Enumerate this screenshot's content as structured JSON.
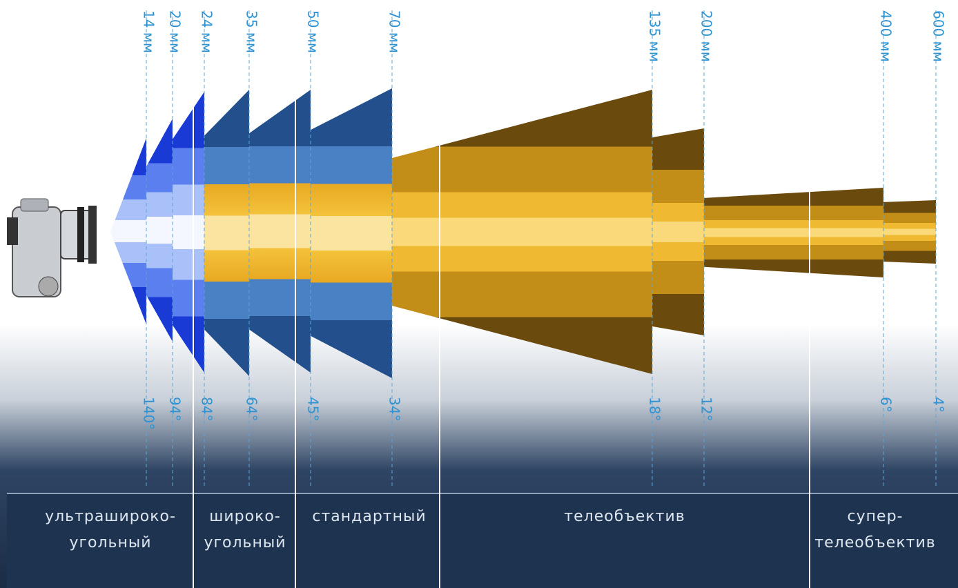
{
  "lenses": [
    {
      "focal": "14 мм",
      "angle": "140°"
    },
    {
      "focal": "20 мм",
      "angle": "94°"
    },
    {
      "focal": "24 мм",
      "angle": "84°"
    },
    {
      "focal": "35 мм",
      "angle": "64°"
    },
    {
      "focal": "50 мм",
      "angle": "45°"
    },
    {
      "focal": "70 мм",
      "angle": "34°"
    },
    {
      "focal": "135 мм",
      "angle": "18°"
    },
    {
      "focal": "200 мм",
      "angle": "12°"
    },
    {
      "focal": "400 мм",
      "angle": "6°"
    },
    {
      "focal": "600 мм",
      "angle": "4°"
    }
  ],
  "categories": [
    {
      "lines": [
        "ультрашироко-",
        "угольный"
      ]
    },
    {
      "lines": [
        "широко-",
        "угольный"
      ]
    },
    {
      "lines": [
        "стандартный"
      ]
    },
    {
      "lines": [
        "телеобъектив"
      ]
    },
    {
      "lines": [
        "супер-",
        "телеобъектив"
      ]
    }
  ]
}
